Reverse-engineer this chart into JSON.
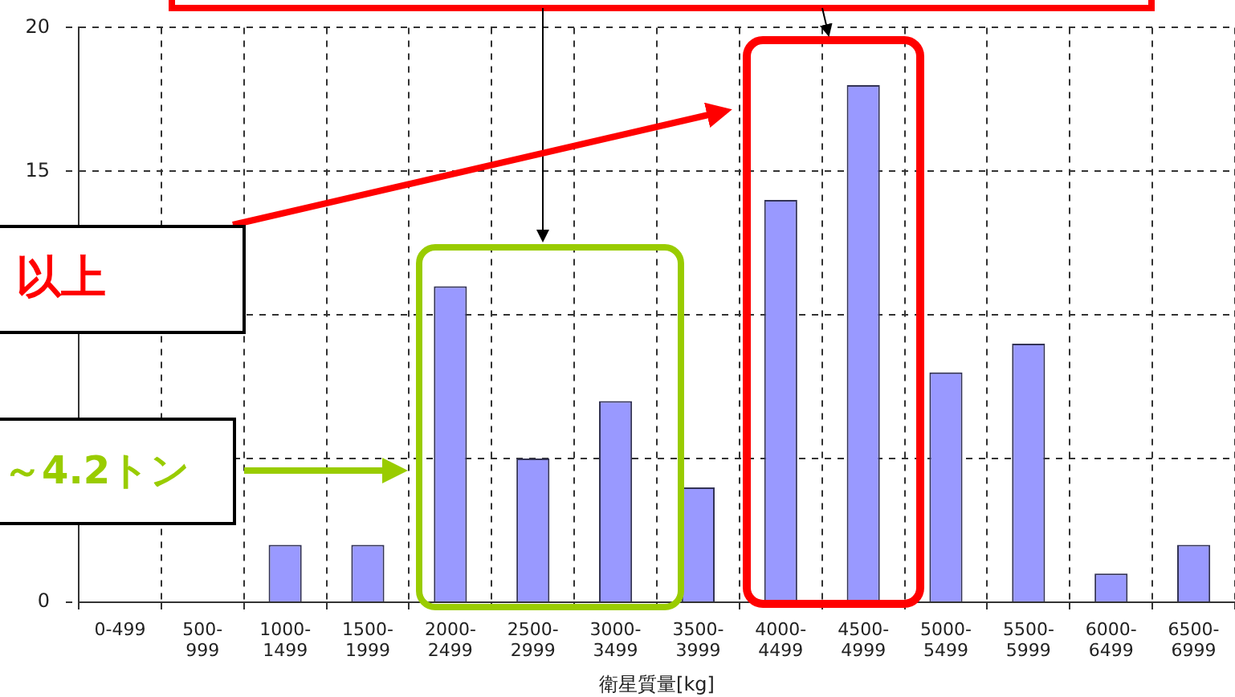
{
  "chart_data": {
    "type": "bar",
    "xlabel": "衛星質量[kg]",
    "categories": [
      "0-499",
      "500-999",
      "1000-1499",
      "1500-1999",
      "2000-2499",
      "2500-2999",
      "3000-3499",
      "3500-3999",
      "4000-4499",
      "4500-4999",
      "5000-5499",
      "5500-5999",
      "6000-6499",
      "6500-6999"
    ],
    "values": [
      0,
      0,
      2,
      2,
      11,
      5,
      7,
      4,
      14,
      18,
      8,
      9,
      1,
      2
    ],
    "color": "#9999ff",
    "ylim": [
      0,
      20
    ],
    "yticks": [
      0,
      {
        "value": 5,
        "label": null
      },
      {
        "value": 10,
        "label": null
      },
      15,
      20
    ],
    "grid": true,
    "annotations": [
      "以上",
      "～4.2トン"
    ]
  }
}
